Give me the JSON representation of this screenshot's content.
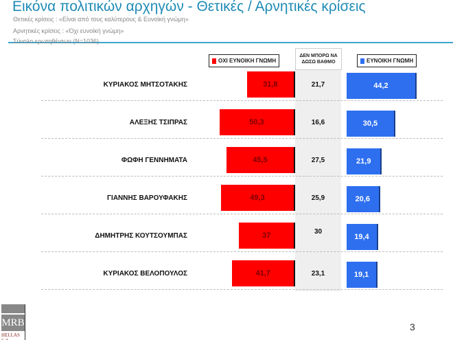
{
  "header": {
    "title": "Εικόνα πολιτικών αρχηγών  - Θετικές / Αρνητικές κρίσεις",
    "positive_note": "Θετικές κρίσεις : «Είναι από τους καλύτερους &  Ευνοϊκή γνώμη»",
    "negative_note": "Αρνητικές κρίσεις : «Όχι ευνοϊκή γνώμη»",
    "sample": "Σύνολο ερωτηθέντων (N=1036)"
  },
  "chart_data": {
    "type": "bar",
    "categories": [
      "ΚΥΡΙΑΚΟΣ ΜΗΤΣΟΤΑΚΗΣ",
      "ΑΛΕΞΗΣ ΤΣΙΠΡΑΣ",
      "ΦΩΦΗ ΓΕΝΝΗΜΑΤΑ",
      "ΓΙΑΝΝΗΣ ΒΑΡΟΥΦΑΚΗΣ",
      "ΔΗΜΗΤΡΗΣ ΚΟΥΤΣΟΥΜΠΑΣ",
      "ΚΥΡΙΑΚΟΣ ΒΕΛΟΠΟΥΛΟΣ"
    ],
    "series": [
      {
        "name": "ΟΧΙ ΕΥΝΟΙΚΗ ΓΝΩΜΗ",
        "color": "#ff0000",
        "values": [
          31.8,
          50.3,
          45.5,
          49.3,
          37,
          41.7
        ],
        "labels": [
          "31,8",
          "50,3",
          "45,5",
          "49,3",
          "37",
          "41,7"
        ]
      },
      {
        "name": "ΔΕΝ ΜΠΟΡΩ ΝΑ ΔΩΣΩ ΒΑΘΜΟ",
        "color": "#efefef",
        "values": [
          21.7,
          16.6,
          27.5,
          25.9,
          30,
          23.1
        ],
        "labels": [
          "21,7",
          "16,6",
          "27,5",
          "25,9",
          "30",
          "23,1"
        ]
      },
      {
        "name": "ΕΥΝΟΙΚΗ ΓΝΩΜΗ",
        "color": "#2e6ff0",
        "values": [
          44.2,
          30.5,
          21.9,
          20.6,
          19.4,
          19.1
        ],
        "labels": [
          "44,2",
          "30,5",
          "21,9",
          "20,6",
          "19,4",
          "19,1"
        ]
      }
    ],
    "legend": {
      "neg": "ΟΧΙ ΕΥΝΟΙΚΗ ΓΝΩΜΗ",
      "dk": "ΔΕΝ ΜΠΟΡΩ ΝΑ ΔΩΣΩ ΒΑΘΜΟ",
      "pos": "ΕΥΝΟΙΚΗ ΓΝΩΜΗ"
    }
  },
  "footer": {
    "logo": "MRB HELLAS S.A.",
    "logo_main": "MRB",
    "logo_sub": "HELLAS S.A.",
    "page_number": "3"
  }
}
